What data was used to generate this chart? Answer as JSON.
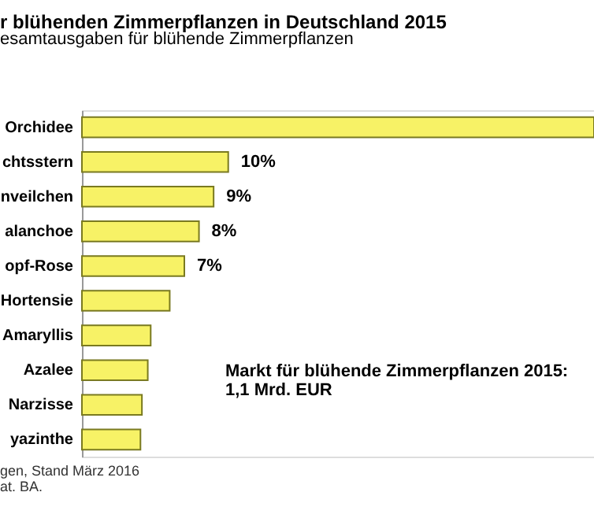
{
  "chart_data": {
    "type": "bar",
    "orientation": "horizontal",
    "title": "r blühenden Zimmerpflanzen in Deutschland 2015",
    "subtitle": "esamtausgaben  für blühende Zimmerpflanzen",
    "categories": [
      "Orchidee",
      "chtsstern",
      "nveilchen",
      "alanchoe",
      "opf-Rose",
      "Hortensie",
      "Amaryllis",
      "Azalee",
      "Narzisse",
      "yazinthe"
    ],
    "values": [
      35,
      10,
      9,
      8,
      7,
      6,
      4.7,
      4.5,
      4.1,
      4
    ],
    "value_labels": [
      null,
      "10%",
      "9%",
      "8%",
      "7%",
      null,
      null,
      null,
      null,
      null
    ],
    "color": "#f7f266",
    "xlim": [
      0,
      35
    ],
    "tick_labels": "y",
    "grid": false,
    "annotations": [
      "Markt für blühende Zimmerpflanzen 2015:",
      "1,1 Mrd. EUR",
      "gen, Stand März 2016",
      "at. BA."
    ]
  }
}
